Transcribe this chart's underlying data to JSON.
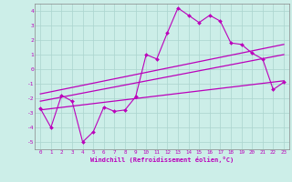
{
  "xlabel": "Windchill (Refroidissement éolien,°C)",
  "bg_color": "#cceee8",
  "grid_color": "#aad4ce",
  "line_color": "#bb00bb",
  "spine_color": "#888888",
  "x_ticks": [
    0,
    1,
    2,
    3,
    4,
    5,
    6,
    7,
    8,
    9,
    10,
    11,
    12,
    13,
    14,
    15,
    16,
    17,
    18,
    19,
    20,
    21,
    22,
    23
  ],
  "ylim": [
    -5.5,
    4.5
  ],
  "xlim": [
    -0.5,
    23.5
  ],
  "series1_x": [
    0,
    1,
    2,
    3,
    4,
    5,
    6,
    7,
    8,
    9,
    10,
    11,
    12,
    13,
    14,
    15,
    16,
    17,
    18,
    19,
    20,
    21,
    22,
    23
  ],
  "series1_y": [
    -2.7,
    -4.0,
    -1.8,
    -2.2,
    -5.0,
    -4.3,
    -2.6,
    -2.9,
    -2.8,
    -1.9,
    1.0,
    0.7,
    2.5,
    4.2,
    3.7,
    3.2,
    3.7,
    3.3,
    1.8,
    1.7,
    1.1,
    0.7,
    -1.4,
    -0.9
  ],
  "series2_x": [
    0,
    23
  ],
  "series2_y": [
    -1.7,
    1.7
  ],
  "series3_x": [
    0,
    23
  ],
  "series3_y": [
    -2.2,
    1.0
  ],
  "series4_x": [
    0,
    23
  ],
  "series4_y": [
    -2.8,
    -0.8
  ],
  "tick_fontsize": 4.2,
  "xlabel_fontsize": 5.0
}
